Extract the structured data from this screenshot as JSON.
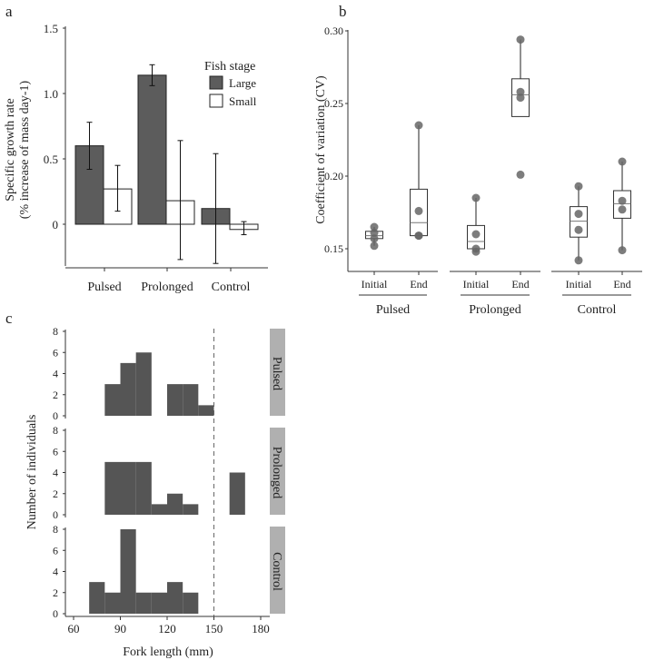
{
  "colors": {
    "bar_large": "#5c5c5c",
    "bar_small": "#ffffff",
    "point": "#666666",
    "hist": "#555555",
    "strip": "#b0b0b0"
  },
  "chart_data": [
    {
      "panel": "a",
      "type": "bar",
      "ylabel": [
        "Specific growth rate",
        "(% increase of mass day-1)"
      ],
      "ylim": [
        -0.3,
        1.5
      ],
      "yticks": [
        "0",
        "0.5",
        "1.0",
        "1.5"
      ],
      "ytick_values": [
        0,
        0.5,
        1.0,
        1.5
      ],
      "categories": [
        "Pulsed",
        "Prolonged",
        "Control"
      ],
      "legend": {
        "title": "Fish stage",
        "placement": "top-right"
      },
      "series": [
        {
          "name": "Large",
          "values": [
            0.6,
            1.14,
            0.12
          ],
          "err_low": [
            0.42,
            1.06,
            -0.3
          ],
          "err_high": [
            0.78,
            1.22,
            0.54
          ]
        },
        {
          "name": "Small",
          "values": [
            0.27,
            0.18,
            -0.04
          ],
          "err_low": [
            0.1,
            -0.27,
            -0.08
          ],
          "err_high": [
            0.45,
            0.64,
            0.02
          ]
        }
      ]
    },
    {
      "panel": "b",
      "type": "box",
      "ylabel": "Coefficient of variation (CV)",
      "ylim": [
        0.135,
        0.3
      ],
      "yticks": [
        "0.15",
        "0.20",
        "0.25",
        "0.30"
      ],
      "ytick_values": [
        0.15,
        0.2,
        0.25,
        0.3
      ],
      "groups": [
        "Pulsed",
        "Prolonged",
        "Control"
      ],
      "categories": [
        "Initial",
        "End"
      ],
      "boxes": [
        {
          "group": 0,
          "label": "Initial",
          "q1": 0.157,
          "median": 0.159,
          "q3": 0.162,
          "whisker_low": 0.152,
          "whisker_high": 0.165,
          "points": [
            0.165,
            0.161,
            0.157,
            0.152
          ]
        },
        {
          "group": 0,
          "label": "End",
          "q1": 0.159,
          "median": 0.168,
          "q3": 0.191,
          "whisker_low": 0.159,
          "whisker_high": 0.235,
          "points": [
            0.235,
            0.176,
            0.159,
            0.159
          ]
        },
        {
          "group": 1,
          "label": "Initial",
          "q1": 0.15,
          "median": 0.155,
          "q3": 0.166,
          "whisker_low": 0.148,
          "whisker_high": 0.185,
          "points": [
            0.185,
            0.16,
            0.15,
            0.148
          ]
        },
        {
          "group": 1,
          "label": "End",
          "q1": 0.241,
          "median": 0.256,
          "q3": 0.267,
          "whisker_low": 0.241,
          "whisker_high": 0.294,
          "points": [
            0.294,
            0.258,
            0.254,
            0.201
          ]
        },
        {
          "group": 2,
          "label": "Initial",
          "q1": 0.158,
          "median": 0.169,
          "q3": 0.179,
          "whisker_low": 0.142,
          "whisker_high": 0.193,
          "points": [
            0.193,
            0.174,
            0.163,
            0.142
          ]
        },
        {
          "group": 2,
          "label": "End",
          "q1": 0.171,
          "median": 0.181,
          "q3": 0.19,
          "whisker_low": 0.149,
          "whisker_high": 0.21,
          "points": [
            0.21,
            0.183,
            0.177,
            0.149
          ]
        }
      ]
    },
    {
      "panel": "c",
      "type": "histogram",
      "xlabel": "Fork length (mm)",
      "ylabel": "Number of individuals",
      "xlim": [
        55,
        185
      ],
      "xticks": [
        "60",
        "90",
        "120",
        "150",
        "180"
      ],
      "xtick_values": [
        60,
        90,
        120,
        150,
        180
      ],
      "yticks": [
        "0",
        "2",
        "4",
        "6",
        "8"
      ],
      "ytick_values": [
        0,
        2,
        4,
        6,
        8
      ],
      "bin_width": 10,
      "reference_line": 150,
      "facets": [
        {
          "name": "Pulsed",
          "bins": [
            [
              80,
              3
            ],
            [
              90,
              5
            ],
            [
              100,
              6
            ],
            [
              120,
              3
            ],
            [
              130,
              3
            ],
            [
              140,
              1
            ]
          ]
        },
        {
          "name": "Prolonged",
          "bins": [
            [
              80,
              5
            ],
            [
              90,
              5
            ],
            [
              100,
              5
            ],
            [
              110,
              1
            ],
            [
              120,
              2
            ],
            [
              130,
              1
            ],
            [
              160,
              4
            ]
          ]
        },
        {
          "name": "Control",
          "bins": [
            [
              70,
              3
            ],
            [
              80,
              2
            ],
            [
              90,
              8
            ],
            [
              100,
              2
            ],
            [
              110,
              2
            ],
            [
              120,
              3
            ],
            [
              130,
              2
            ]
          ]
        }
      ]
    }
  ],
  "panel_labels": [
    "a",
    "b",
    "c"
  ]
}
